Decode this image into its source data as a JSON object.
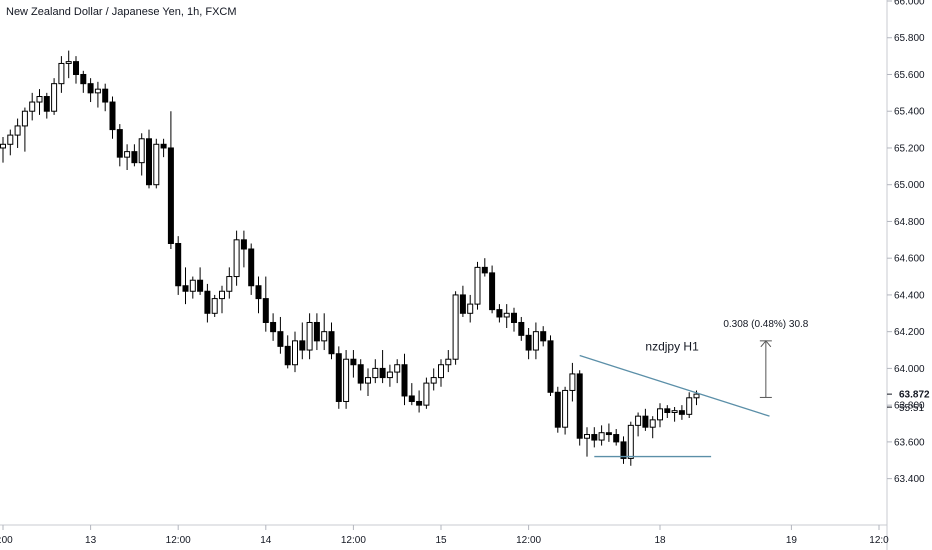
{
  "chart_data": {
    "type": "candlestick",
    "title": "New Zealand Dollar / Japanese Yen, 1h, FXCM",
    "ylim": [
      63.3,
      66.0
    ],
    "y_ticks": [
      "66.000",
      "65.800",
      "65.600",
      "65.400",
      "65.200",
      "65.000",
      "64.800",
      "64.600",
      "64.400",
      "64.200",
      "64.000",
      "63.800",
      "63.600",
      "63.400"
    ],
    "x_ticks": [
      {
        "label": "2:00",
        "i": 0
      },
      {
        "label": "13",
        "i": 12
      },
      {
        "label": "12:00",
        "i": 24
      },
      {
        "label": "14",
        "i": 36
      },
      {
        "label": "12:00",
        "i": 48
      },
      {
        "label": "15",
        "i": 60
      },
      {
        "label": "12:00",
        "i": 72
      },
      {
        "label": "18",
        "i": 90
      },
      {
        "label": "19",
        "i": 108
      },
      {
        "label": "12:0",
        "i": 120
      }
    ],
    "candles": [
      [
        65.2,
        65.26,
        65.12,
        65.22
      ],
      [
        65.22,
        65.3,
        65.16,
        65.27
      ],
      [
        65.27,
        65.36,
        65.2,
        65.32
      ],
      [
        65.32,
        65.42,
        65.18,
        65.4
      ],
      [
        65.4,
        65.5,
        65.35,
        65.45
      ],
      [
        65.45,
        65.52,
        65.38,
        65.48
      ],
      [
        65.48,
        65.5,
        65.36,
        65.4
      ],
      [
        65.4,
        65.58,
        65.38,
        65.55
      ],
      [
        65.55,
        65.7,
        65.5,
        65.66
      ],
      [
        65.66,
        65.73,
        65.58,
        65.67
      ],
      [
        65.67,
        65.7,
        65.55,
        65.6
      ],
      [
        65.6,
        65.62,
        65.5,
        65.55
      ],
      [
        65.55,
        65.58,
        65.45,
        65.5
      ],
      [
        65.5,
        65.56,
        65.42,
        65.52
      ],
      [
        65.52,
        65.55,
        65.4,
        65.45
      ],
      [
        65.45,
        65.48,
        65.25,
        65.3
      ],
      [
        65.3,
        65.33,
        65.1,
        65.15
      ],
      [
        65.15,
        65.22,
        65.08,
        65.18
      ],
      [
        65.18,
        65.22,
        65.1,
        65.12
      ],
      [
        65.12,
        65.28,
        65.05,
        65.25
      ],
      [
        65.25,
        65.3,
        64.98,
        65.0
      ],
      [
        65.0,
        65.25,
        64.98,
        65.22
      ],
      [
        65.22,
        65.25,
        65.15,
        65.2
      ],
      [
        65.2,
        65.4,
        64.65,
        64.68
      ],
      [
        64.68,
        64.72,
        64.4,
        64.45
      ],
      [
        64.45,
        64.55,
        64.35,
        64.42
      ],
      [
        64.42,
        64.5,
        64.38,
        64.48
      ],
      [
        64.48,
        64.55,
        64.4,
        64.42
      ],
      [
        64.42,
        64.46,
        64.25,
        64.3
      ],
      [
        64.3,
        64.4,
        64.28,
        64.38
      ],
      [
        64.38,
        64.45,
        64.3,
        64.42
      ],
      [
        64.42,
        64.55,
        64.38,
        64.5
      ],
      [
        64.5,
        64.75,
        64.45,
        64.7
      ],
      [
        64.7,
        64.75,
        64.55,
        64.65
      ],
      [
        64.65,
        64.68,
        64.4,
        64.45
      ],
      [
        64.45,
        64.5,
        64.3,
        64.38
      ],
      [
        64.38,
        64.5,
        64.2,
        64.25
      ],
      [
        64.25,
        64.3,
        64.15,
        64.2
      ],
      [
        64.2,
        64.28,
        64.08,
        64.12
      ],
      [
        64.12,
        64.18,
        64.0,
        64.02
      ],
      [
        64.02,
        64.2,
        63.98,
        64.15
      ],
      [
        64.15,
        64.25,
        64.05,
        64.1
      ],
      [
        64.1,
        64.3,
        64.05,
        64.25
      ],
      [
        64.25,
        64.3,
        64.1,
        64.15
      ],
      [
        64.15,
        64.3,
        64.1,
        64.2
      ],
      [
        64.2,
        64.25,
        64.05,
        64.08
      ],
      [
        64.08,
        64.12,
        63.78,
        63.82
      ],
      [
        63.82,
        64.1,
        63.78,
        64.05
      ],
      [
        64.05,
        64.1,
        63.95,
        64.02
      ],
      [
        64.02,
        64.05,
        63.88,
        63.92
      ],
      [
        63.92,
        64.0,
        63.85,
        63.95
      ],
      [
        63.95,
        64.05,
        63.92,
        64.0
      ],
      [
        64.0,
        64.1,
        63.92,
        63.95
      ],
      [
        63.95,
        64.02,
        63.9,
        63.98
      ],
      [
        63.98,
        64.05,
        63.92,
        64.02
      ],
      [
        64.02,
        64.08,
        63.8,
        63.85
      ],
      [
        63.85,
        63.92,
        63.8,
        63.82
      ],
      [
        63.82,
        63.88,
        63.76,
        63.8
      ],
      [
        63.8,
        63.95,
        63.78,
        63.92
      ],
      [
        63.92,
        64.0,
        63.88,
        63.95
      ],
      [
        63.95,
        64.05,
        63.9,
        64.02
      ],
      [
        64.02,
        64.1,
        63.98,
        64.05
      ],
      [
        64.05,
        64.42,
        64.02,
        64.4
      ],
      [
        64.4,
        64.45,
        64.28,
        64.3
      ],
      [
        64.3,
        64.4,
        64.25,
        64.35
      ],
      [
        64.35,
        64.58,
        64.32,
        64.55
      ],
      [
        64.55,
        64.6,
        64.5,
        64.52
      ],
      [
        64.52,
        64.56,
        64.3,
        64.32
      ],
      [
        64.32,
        64.35,
        64.25,
        64.28
      ],
      [
        64.28,
        64.35,
        64.22,
        64.3
      ],
      [
        64.3,
        64.33,
        64.2,
        64.25
      ],
      [
        64.25,
        64.28,
        64.15,
        64.18
      ],
      [
        64.18,
        64.22,
        64.05,
        64.1
      ],
      [
        64.1,
        64.25,
        64.05,
        64.2
      ],
      [
        64.2,
        64.23,
        64.12,
        64.15
      ],
      [
        64.15,
        64.18,
        63.85,
        63.87
      ],
      [
        63.87,
        63.9,
        63.65,
        63.68
      ],
      [
        63.68,
        63.9,
        63.64,
        63.88
      ],
      [
        63.88,
        64.03,
        63.82,
        63.97
      ],
      [
        63.97,
        63.99,
        63.58,
        63.62
      ],
      [
        63.62,
        63.68,
        63.52,
        63.64
      ],
      [
        63.64,
        63.68,
        63.57,
        63.61
      ],
      [
        63.61,
        63.69,
        63.58,
        63.65
      ],
      [
        63.65,
        63.7,
        63.6,
        63.64
      ],
      [
        63.64,
        63.67,
        63.58,
        63.6
      ],
      [
        63.6,
        63.63,
        63.48,
        63.51
      ],
      [
        63.51,
        63.71,
        63.47,
        63.69
      ],
      [
        63.69,
        63.76,
        63.63,
        63.74
      ],
      [
        63.74,
        63.78,
        63.66,
        63.68
      ],
      [
        63.68,
        63.74,
        63.62,
        63.72
      ],
      [
        63.72,
        63.81,
        63.68,
        63.78
      ],
      [
        63.78,
        63.8,
        63.73,
        63.76
      ],
      [
        63.76,
        63.79,
        63.71,
        63.77
      ],
      [
        63.77,
        63.8,
        63.72,
        63.75
      ],
      [
        63.75,
        63.87,
        63.73,
        63.84
      ],
      [
        63.84,
        63.88,
        63.8,
        63.86
      ]
    ],
    "annotations": {
      "label": "nzdjpy H1",
      "measure_text": "0.308 (0.48%) 30.8",
      "price_label": "63.872",
      "countdown_label": "55:51",
      "line_color": "#5b8fa8"
    }
  }
}
